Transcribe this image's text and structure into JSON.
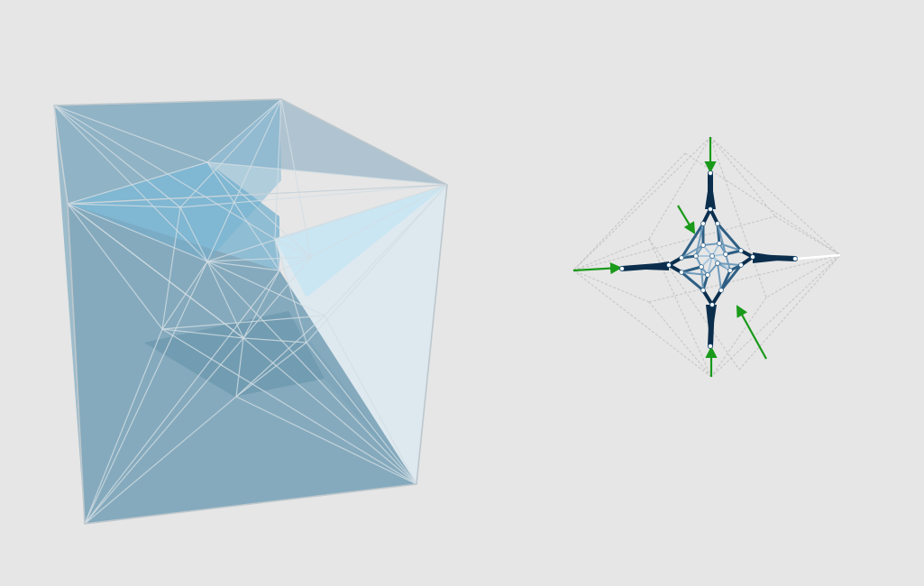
{
  "viewport": {
    "background_color": "#e6e6e6"
  },
  "views": [
    {
      "name": "polyhedral-force-diagram",
      "fill_colors": [
        "#7fa7bb",
        "#a6c1d0",
        "#c5dbe6",
        "#dde9ef",
        "#5c88a0",
        "#9ec4d6"
      ],
      "edge_color": "#d2dde3",
      "outline_color": "#bdc7cd"
    },
    {
      "name": "form-diagram",
      "member_colors": [
        "#0b2e4d",
        "#2e5f84",
        "#6f9bbb",
        "#a9c8de"
      ],
      "applied_load_color": "#1a9a1a",
      "reaction_color": "#ffffff",
      "guide_line_color": "#c4c4c4",
      "node_color": "#ffffff"
    }
  ]
}
